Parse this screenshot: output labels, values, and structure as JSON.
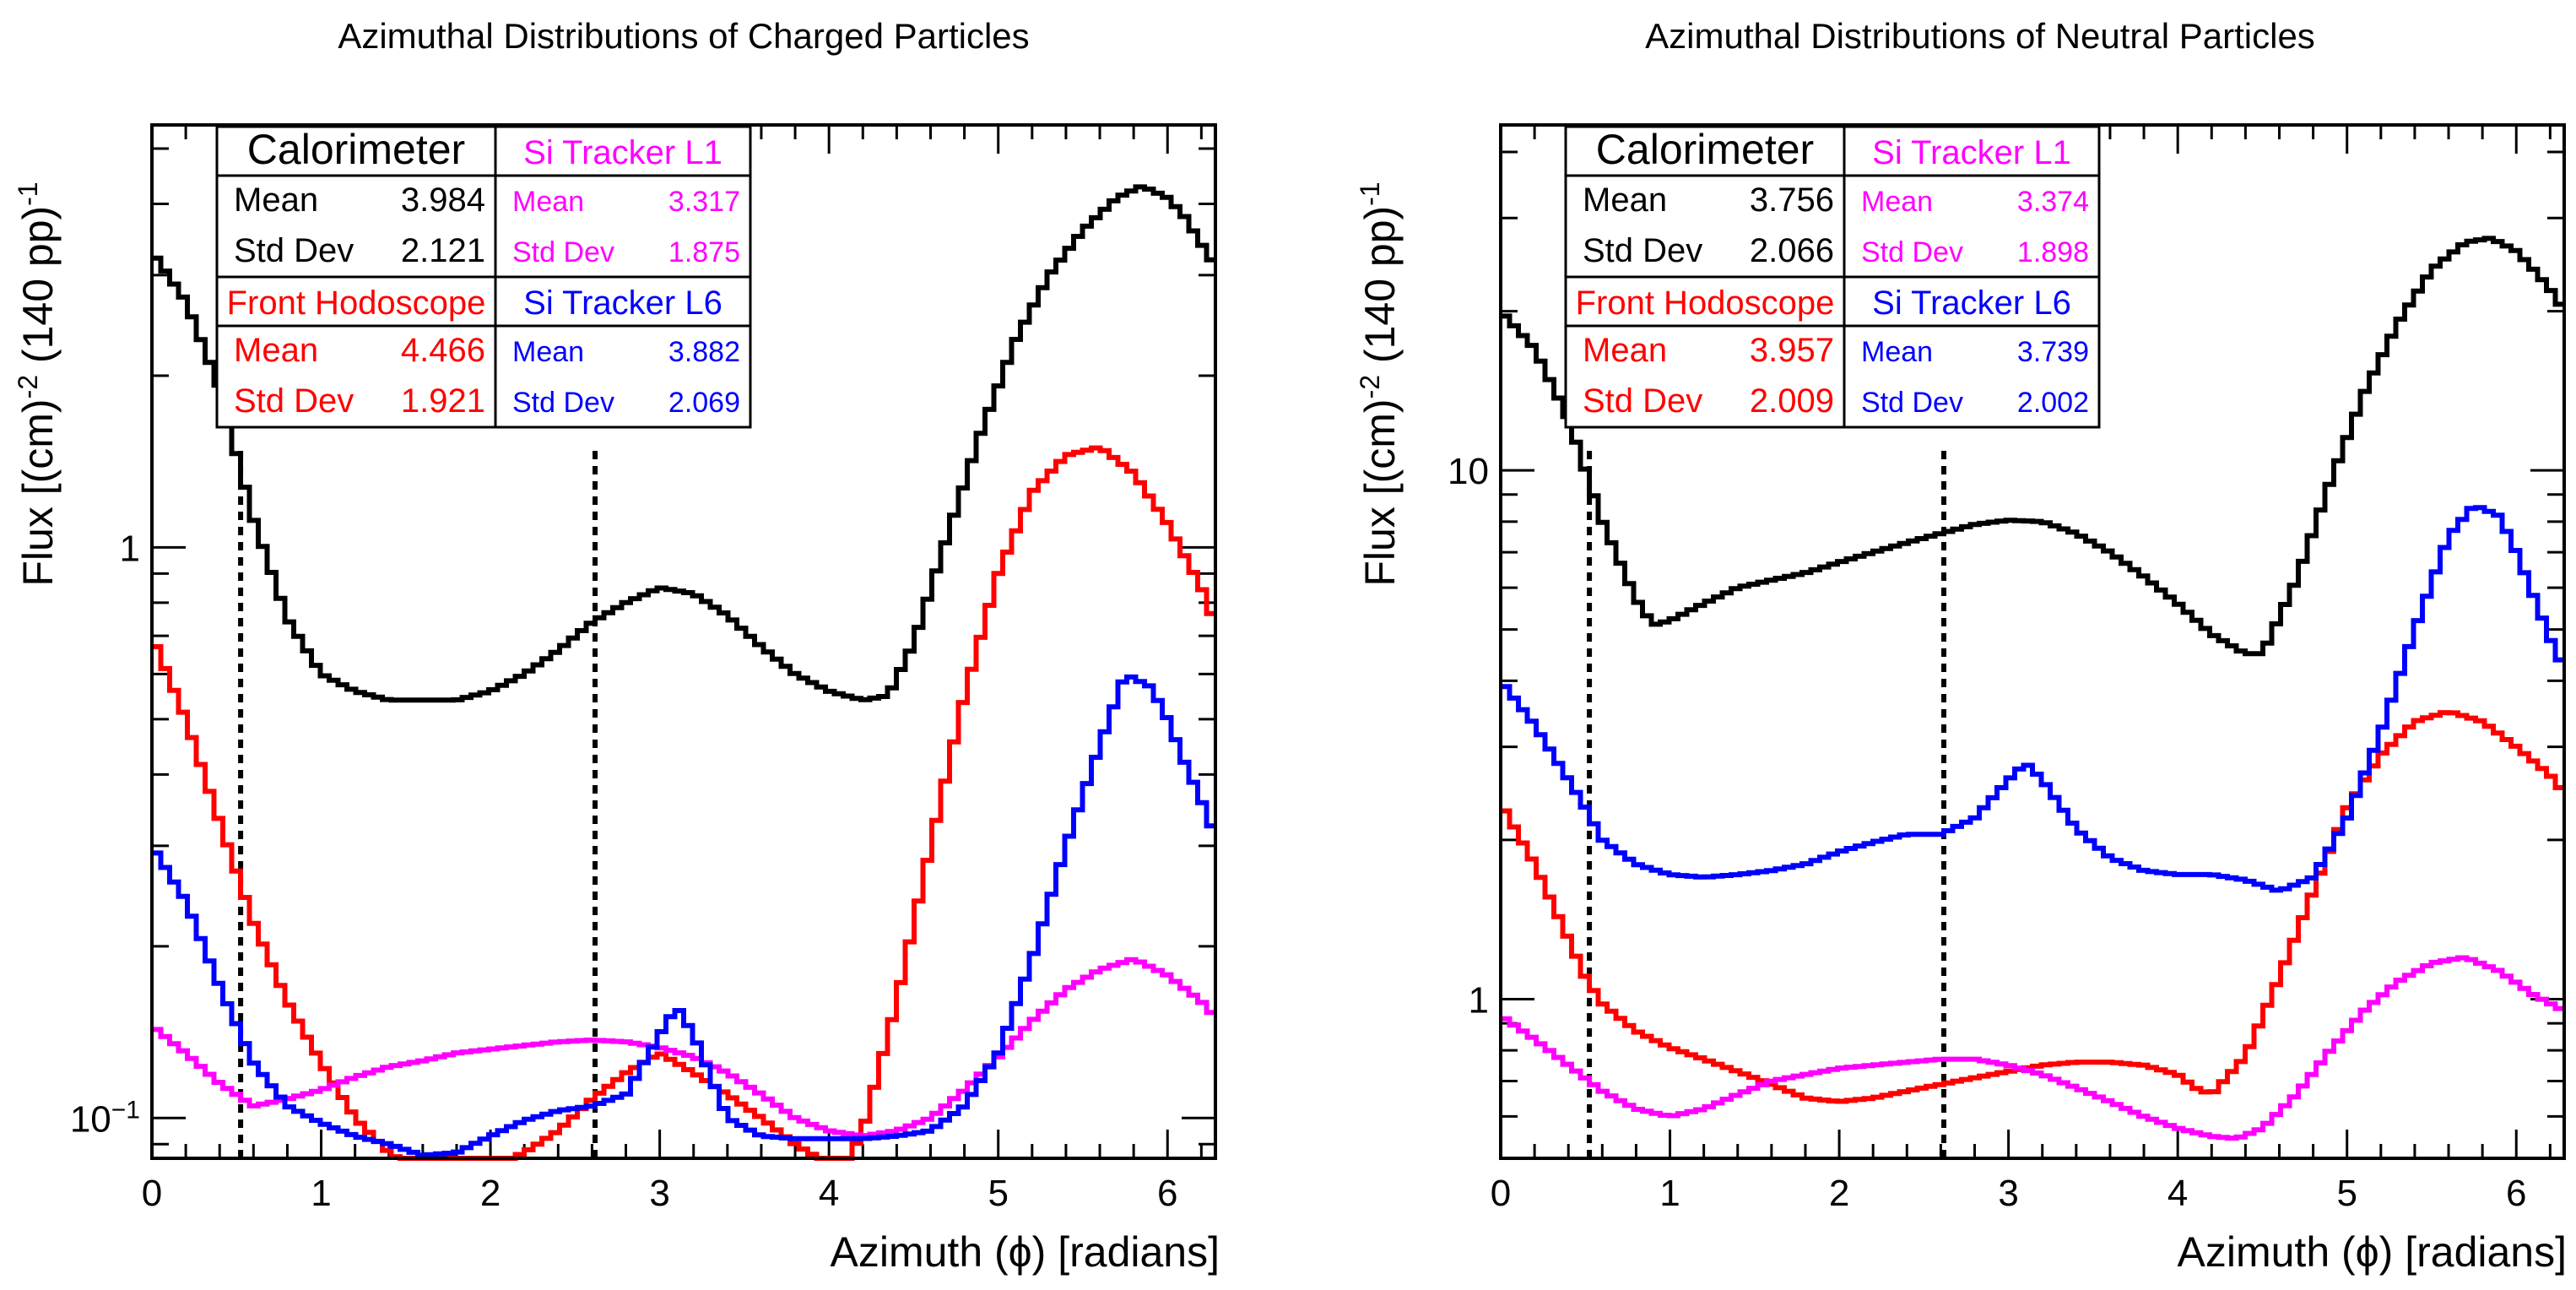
{
  "chart_data": [
    {
      "type": "line",
      "title": "Azimuthal Distributions of Charged Particles",
      "xlabel": "Azimuth (ϕ) [radians]",
      "ylabel_main": "Flux [(cm)",
      "ylabel_sup1": "-2",
      "ylabel_mid": " (140 pp)",
      "ylabel_sup2": "-1",
      "xlim": [
        0,
        6.283
      ],
      "ylim": [
        0.085,
        5.5
      ],
      "ylog": true,
      "xticks": [
        0,
        1,
        2,
        3,
        4,
        5,
        6
      ],
      "xtick_labels": [
        "0",
        "1",
        "2",
        "3",
        "4",
        "5",
        "6"
      ],
      "yticks": [
        0.1,
        1
      ],
      "ytick_labels": [
        [
          "10",
          "−1"
        ],
        [
          "1",
          ""
        ]
      ],
      "vlines": [
        0.524,
        2.618
      ],
      "series": [
        {
          "name": "Calorimeter",
          "color": "#000000",
          "x": [
            0,
            0.2,
            0.4,
            0.5,
            0.6,
            0.8,
            1.0,
            1.2,
            1.4,
            1.6,
            1.8,
            2.0,
            2.2,
            2.4,
            2.6,
            2.8,
            3.0,
            3.2,
            3.4,
            3.6,
            3.8,
            4.0,
            4.2,
            4.35,
            4.5,
            4.7,
            4.9,
            5.1,
            5.3,
            5.5,
            5.7,
            5.85,
            6.0,
            6.1,
            6.2,
            6.283
          ],
          "y": [
            3.3,
            2.7,
            1.9,
            1.45,
            1.12,
            0.75,
            0.6,
            0.56,
            0.54,
            0.54,
            0.54,
            0.56,
            0.6,
            0.66,
            0.74,
            0.8,
            0.85,
            0.83,
            0.76,
            0.67,
            0.6,
            0.56,
            0.54,
            0.55,
            0.68,
            1.05,
            1.6,
            2.3,
            3.0,
            3.6,
            4.1,
            4.3,
            4.1,
            3.8,
            3.4,
            3.1
          ]
        },
        {
          "name": "Front Hodoscope",
          "color": "#ff0000",
          "x": [
            0,
            0.2,
            0.4,
            0.6,
            0.8,
            1.0,
            1.2,
            1.4,
            1.6,
            1.8,
            2.0,
            2.2,
            2.4,
            2.6,
            2.8,
            3.0,
            3.2,
            3.4,
            3.6,
            3.8,
            4.0,
            4.1,
            4.2,
            4.4,
            4.6,
            4.8,
            5.0,
            5.2,
            5.4,
            5.6,
            5.8,
            6.0,
            6.2,
            6.283
          ],
          "y": [
            0.7,
            0.5,
            0.33,
            0.22,
            0.16,
            0.125,
            0.1,
            0.087,
            0.08,
            0.079,
            0.082,
            0.087,
            0.095,
            0.108,
            0.12,
            0.13,
            0.12,
            0.11,
            0.1,
            0.09,
            0.083,
            0.083,
            0.095,
            0.16,
            0.3,
            0.55,
            0.9,
            1.25,
            1.45,
            1.5,
            1.35,
            1.1,
            0.85,
            0.73
          ]
        },
        {
          "name": "Si Tracker L1",
          "color": "#ff00ff",
          "x": [
            0,
            0.2,
            0.4,
            0.6,
            0.8,
            1.0,
            1.2,
            1.4,
            1.6,
            1.8,
            2.0,
            2.2,
            2.4,
            2.6,
            2.8,
            3.0,
            3.2,
            3.4,
            3.6,
            3.8,
            4.0,
            4.2,
            4.4,
            4.6,
            4.8,
            5.0,
            5.2,
            5.4,
            5.6,
            5.8,
            6.0,
            6.2,
            6.283
          ],
          "y": [
            0.145,
            0.13,
            0.115,
            0.105,
            0.108,
            0.112,
            0.118,
            0.123,
            0.126,
            0.13,
            0.132,
            0.134,
            0.136,
            0.137,
            0.136,
            0.133,
            0.128,
            0.12,
            0.11,
            0.1,
            0.095,
            0.093,
            0.095,
            0.1,
            0.112,
            0.128,
            0.148,
            0.168,
            0.182,
            0.19,
            0.178,
            0.16,
            0.15
          ]
        },
        {
          "name": "Si Tracker L6",
          "color": "#0000ff",
          "x": [
            0,
            0.2,
            0.4,
            0.6,
            0.8,
            1.0,
            1.2,
            1.4,
            1.6,
            1.8,
            2.0,
            2.2,
            2.4,
            2.6,
            2.8,
            3.0,
            3.1,
            3.2,
            3.4,
            3.6,
            3.8,
            4.0,
            4.2,
            4.4,
            4.6,
            4.8,
            5.0,
            5.2,
            5.4,
            5.6,
            5.75,
            5.9,
            6.0,
            6.1,
            6.2,
            6.283
          ],
          "y": [
            0.3,
            0.24,
            0.17,
            0.125,
            0.105,
            0.098,
            0.093,
            0.09,
            0.086,
            0.087,
            0.093,
            0.099,
            0.103,
            0.105,
            0.11,
            0.14,
            0.157,
            0.14,
            0.1,
            0.093,
            0.092,
            0.092,
            0.092,
            0.093,
            0.095,
            0.105,
            0.13,
            0.19,
            0.3,
            0.45,
            0.6,
            0.57,
            0.5,
            0.42,
            0.36,
            0.31
          ]
        }
      ],
      "stats_headers": [
        "Calorimeter",
        "Si Tracker L1",
        "Front Hodoscope",
        "Si Tracker L6"
      ],
      "stats_labels": {
        "mean": "Mean",
        "std": "Std Dev"
      },
      "stats": {
        "calorimeter": {
          "mean": "3.984",
          "std": "2.121"
        },
        "si_tracker_l1": {
          "mean": "3.317",
          "std": "1.875"
        },
        "front_hodoscope": {
          "mean": "4.466",
          "std": "1.921"
        },
        "si_tracker_l6": {
          "mean": "3.882",
          "std": "2.069"
        }
      }
    },
    {
      "type": "line",
      "title": "Azimuthal Distributions of Neutral Particles",
      "xlabel": "Azimuth (ϕ) [radians]",
      "ylabel_main": "Flux [(cm)",
      "ylabel_sup1": "-2",
      "ylabel_mid": " (140 pp)",
      "ylabel_sup2": "-1",
      "xlim": [
        0,
        6.283
      ],
      "ylim": [
        0.5,
        45
      ],
      "ylog": true,
      "xticks": [
        0,
        1,
        2,
        3,
        4,
        5,
        6
      ],
      "xtick_labels": [
        "0",
        "1",
        "2",
        "3",
        "4",
        "5",
        "6"
      ],
      "yticks": [
        1,
        10
      ],
      "ytick_labels": [
        [
          "1",
          ""
        ],
        [
          "10",
          ""
        ]
      ],
      "vlines": [
        0.524,
        2.618
      ],
      "series": [
        {
          "name": "Calorimeter",
          "color": "#000000",
          "x": [
            0,
            0.2,
            0.4,
            0.5,
            0.6,
            0.8,
            0.9,
            1.0,
            1.2,
            1.4,
            1.6,
            1.8,
            2.0,
            2.2,
            2.4,
            2.6,
            2.8,
            3.0,
            3.2,
            3.4,
            3.6,
            3.8,
            4.0,
            4.2,
            4.4,
            4.5,
            4.7,
            4.9,
            5.1,
            5.3,
            5.5,
            5.7,
            5.85,
            6.0,
            6.1,
            6.2,
            6.283
          ],
          "y": [
            20,
            17,
            12.5,
            10,
            8,
            5.7,
            5.1,
            5.2,
            5.6,
            6.0,
            6.2,
            6.4,
            6.7,
            7.0,
            7.3,
            7.6,
            7.9,
            8.05,
            8.0,
            7.6,
            7.0,
            6.3,
            5.6,
            4.9,
            4.5,
            4.5,
            6.2,
            9.5,
            14,
            19,
            24,
            27,
            27.5,
            26,
            24,
            22,
            20
          ]
        },
        {
          "name": "Front Hodoscope",
          "color": "#ff0000",
          "x": [
            0,
            0.2,
            0.4,
            0.5,
            0.6,
            0.8,
            1.0,
            1.2,
            1.4,
            1.6,
            1.8,
            2.0,
            2.2,
            2.4,
            2.6,
            2.8,
            3.0,
            3.2,
            3.4,
            3.6,
            3.8,
            4.0,
            4.1,
            4.2,
            4.4,
            4.6,
            4.8,
            5.0,
            5.2,
            5.4,
            5.6,
            5.8,
            6.0,
            6.2,
            6.283
          ],
          "y": [
            2.35,
            1.8,
            1.3,
            1.1,
            0.98,
            0.87,
            0.81,
            0.77,
            0.73,
            0.69,
            0.65,
            0.64,
            0.65,
            0.67,
            0.69,
            0.71,
            0.73,
            0.75,
            0.76,
            0.76,
            0.75,
            0.72,
            0.68,
            0.66,
            0.78,
            1.1,
            1.6,
            2.3,
            2.9,
            3.35,
            3.5,
            3.35,
            3.0,
            2.65,
            2.45
          ]
        },
        {
          "name": "Si Tracker L1",
          "color": "#ff00ff",
          "x": [
            0,
            0.2,
            0.4,
            0.6,
            0.8,
            1.0,
            1.2,
            1.4,
            1.6,
            1.8,
            2.0,
            2.2,
            2.4,
            2.6,
            2.8,
            3.0,
            3.2,
            3.4,
            3.6,
            3.8,
            4.0,
            4.2,
            4.35,
            4.5,
            4.7,
            4.9,
            5.1,
            5.3,
            5.5,
            5.7,
            5.9,
            6.1,
            6.283
          ],
          "y": [
            0.93,
            0.84,
            0.75,
            0.67,
            0.62,
            0.6,
            0.62,
            0.66,
            0.7,
            0.72,
            0.74,
            0.75,
            0.76,
            0.77,
            0.77,
            0.75,
            0.72,
            0.68,
            0.64,
            0.6,
            0.57,
            0.55,
            0.545,
            0.57,
            0.66,
            0.8,
            0.95,
            1.08,
            1.17,
            1.2,
            1.13,
            1.02,
            0.95
          ]
        },
        {
          "name": "Si Tracker L6",
          "color": "#0000ff",
          "x": [
            0,
            0.2,
            0.4,
            0.5,
            0.6,
            0.8,
            1.0,
            1.2,
            1.4,
            1.6,
            1.8,
            2.0,
            2.2,
            2.4,
            2.6,
            2.8,
            3.0,
            3.1,
            3.2,
            3.4,
            3.6,
            3.8,
            4.0,
            4.2,
            4.4,
            4.6,
            4.8,
            5.0,
            5.2,
            5.4,
            5.6,
            5.75,
            5.9,
            6.0,
            6.1,
            6.2,
            6.283
          ],
          "y": [
            4.0,
            3.3,
            2.6,
            2.3,
            2.0,
            1.8,
            1.72,
            1.7,
            1.72,
            1.75,
            1.8,
            1.9,
            1.98,
            2.05,
            2.05,
            2.2,
            2.6,
            2.8,
            2.6,
            2.1,
            1.85,
            1.75,
            1.72,
            1.72,
            1.68,
            1.6,
            1.7,
            2.2,
            3.2,
            5.0,
            7.5,
            8.6,
            8.2,
            7.0,
            5.8,
            4.8,
            4.2
          ]
        }
      ],
      "stats_headers": [
        "Calorimeter",
        "Si Tracker L1",
        "Front Hodoscope",
        "Si Tracker L6"
      ],
      "stats_labels": {
        "mean": "Mean",
        "std": "Std Dev"
      },
      "stats": {
        "calorimeter": {
          "mean": "3.756",
          "std": "2.066"
        },
        "si_tracker_l1": {
          "mean": "3.374",
          "std": "1.898"
        },
        "front_hodoscope": {
          "mean": "3.957",
          "std": "2.009"
        },
        "si_tracker_l6": {
          "mean": "3.739",
          "std": "2.002"
        }
      }
    }
  ]
}
